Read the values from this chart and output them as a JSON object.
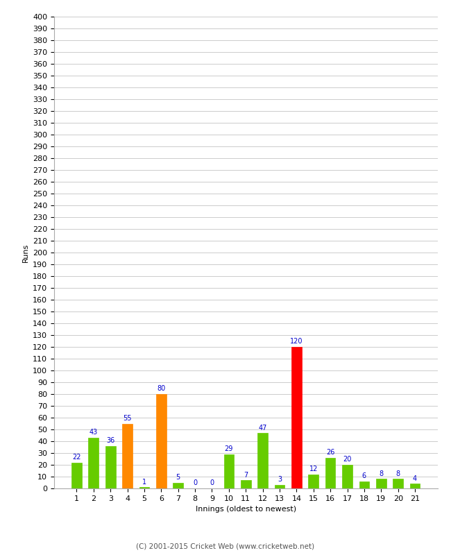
{
  "xlabel": "Innings (oldest to newest)",
  "ylabel": "Runs",
  "categories": [
    1,
    2,
    3,
    4,
    5,
    6,
    7,
    8,
    9,
    10,
    11,
    12,
    13,
    14,
    15,
    16,
    17,
    18,
    19,
    20,
    21
  ],
  "values": [
    22,
    43,
    36,
    55,
    1,
    80,
    5,
    0,
    0,
    29,
    7,
    47,
    3,
    120,
    12,
    26,
    20,
    6,
    8,
    8,
    4
  ],
  "bar_colors": [
    "#66cc00",
    "#66cc00",
    "#66cc00",
    "#ff8800",
    "#66cc00",
    "#ff8800",
    "#66cc00",
    "#66cc00",
    "#66cc00",
    "#66cc00",
    "#66cc00",
    "#66cc00",
    "#66cc00",
    "#ff0000",
    "#66cc00",
    "#66cc00",
    "#66cc00",
    "#66cc00",
    "#66cc00",
    "#66cc00",
    "#66cc00"
  ],
  "ylim": [
    0,
    400
  ],
  "label_color": "#0000cc",
  "background_color": "#ffffff",
  "grid_color": "#cccccc",
  "footer": "(C) 2001-2015 Cricket Web (www.cricketweb.net)",
  "ylabel_fontsize": 8,
  "xlabel_fontsize": 8,
  "tick_fontsize": 8,
  "label_fontsize": 7
}
